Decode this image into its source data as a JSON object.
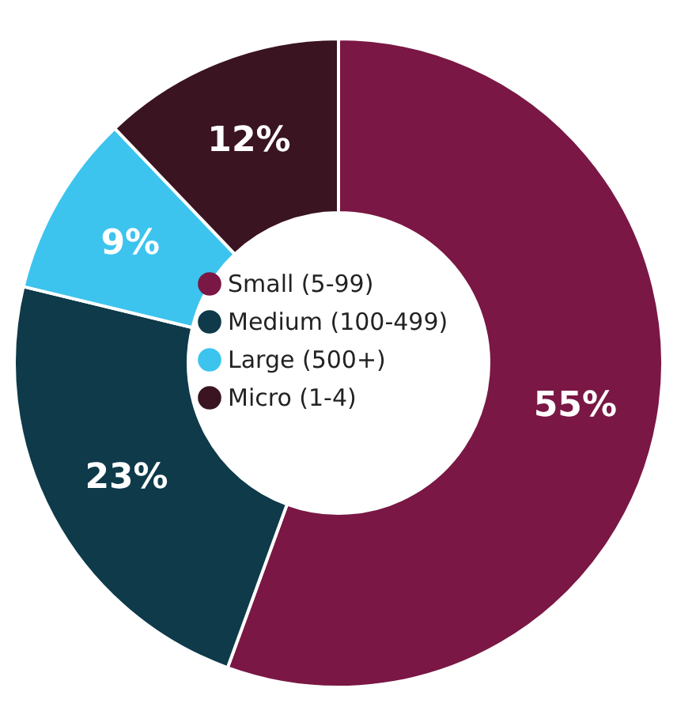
{
  "chart_data": {
    "type": "donut",
    "categories": [
      "Small (5-99)",
      "Medium (100-499)",
      "Large (500+)",
      "Micro (1-4)"
    ],
    "values": [
      55,
      23,
      9,
      12
    ],
    "colors": [
      "#7a1744",
      "#0e3a4a",
      "#3cc4ee",
      "#3a1420"
    ],
    "value_labels": [
      "55%",
      "23%",
      "9%",
      "12%"
    ],
    "legend": "center"
  }
}
